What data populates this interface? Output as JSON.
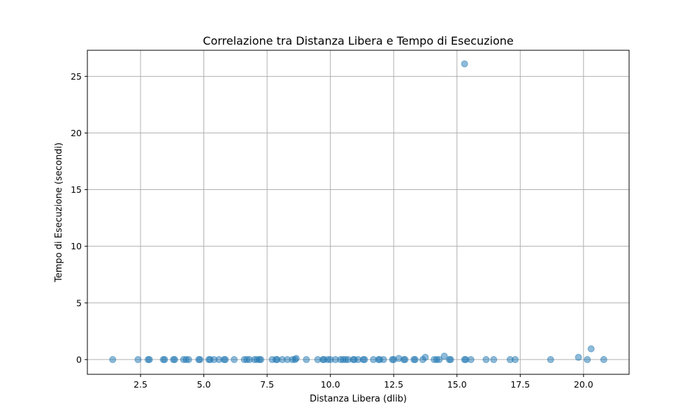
{
  "chart_data": {
    "type": "scatter",
    "title": "Correlazione tra Distanza Libera e Tempo di Esecuzione",
    "xlabel": "Distanza Libera (dlib)",
    "ylabel": "Tempo di Esecuzione (secondi)",
    "xlim": [
      0.4,
      21.8
    ],
    "ylim": [
      -1.3,
      27.3
    ],
    "xticks": [
      2.5,
      5.0,
      7.5,
      10.0,
      12.5,
      15.0,
      17.5,
      20.0
    ],
    "xtick_labels": [
      "2.5",
      "5.0",
      "7.5",
      "10.0",
      "12.5",
      "15.0",
      "17.5",
      "20.0"
    ],
    "yticks": [
      0,
      5,
      10,
      15,
      20,
      25
    ],
    "ytick_labels": [
      "0",
      "5",
      "10",
      "15",
      "20",
      "25"
    ],
    "grid": true,
    "marker_color": "#1f77b4",
    "marker_alpha": 0.5,
    "points": [
      [
        1.4,
        0.0
      ],
      [
        2.4,
        0.0
      ],
      [
        2.8,
        0.0
      ],
      [
        2.85,
        0.0
      ],
      [
        3.4,
        0.0
      ],
      [
        3.45,
        0.0
      ],
      [
        3.8,
        0.0
      ],
      [
        3.85,
        0.0
      ],
      [
        4.2,
        0.0
      ],
      [
        4.3,
        0.0
      ],
      [
        4.4,
        0.0
      ],
      [
        4.8,
        0.0
      ],
      [
        4.85,
        0.0
      ],
      [
        5.2,
        0.0
      ],
      [
        5.25,
        0.0
      ],
      [
        5.4,
        0.0
      ],
      [
        5.6,
        0.0
      ],
      [
        5.8,
        0.0
      ],
      [
        5.85,
        0.0
      ],
      [
        6.2,
        0.0
      ],
      [
        6.6,
        0.0
      ],
      [
        6.7,
        0.0
      ],
      [
        6.8,
        0.0
      ],
      [
        7.0,
        0.0
      ],
      [
        7.1,
        0.0
      ],
      [
        7.2,
        0.0
      ],
      [
        7.25,
        0.0
      ],
      [
        7.7,
        0.0
      ],
      [
        7.85,
        0.0
      ],
      [
        7.9,
        0.0
      ],
      [
        8.1,
        0.0
      ],
      [
        8.3,
        0.0
      ],
      [
        8.5,
        0.0
      ],
      [
        8.6,
        0.0
      ],
      [
        8.65,
        0.1
      ],
      [
        9.05,
        0.0
      ],
      [
        9.5,
        0.0
      ],
      [
        9.7,
        0.0
      ],
      [
        9.75,
        0.0
      ],
      [
        9.9,
        0.0
      ],
      [
        10.0,
        0.0
      ],
      [
        10.2,
        0.0
      ],
      [
        10.4,
        0.0
      ],
      [
        10.5,
        0.0
      ],
      [
        10.6,
        0.0
      ],
      [
        10.7,
        0.0
      ],
      [
        10.9,
        0.0
      ],
      [
        10.95,
        0.0
      ],
      [
        11.1,
        0.0
      ],
      [
        11.3,
        0.0
      ],
      [
        11.35,
        0.0
      ],
      [
        11.7,
        0.0
      ],
      [
        11.9,
        0.0
      ],
      [
        11.95,
        0.0
      ],
      [
        12.1,
        0.0
      ],
      [
        12.45,
        0.0
      ],
      [
        12.5,
        0.0
      ],
      [
        12.7,
        0.1
      ],
      [
        12.9,
        0.0
      ],
      [
        12.95,
        0.0
      ],
      [
        13.3,
        0.0
      ],
      [
        13.35,
        0.0
      ],
      [
        13.65,
        0.0
      ],
      [
        13.75,
        0.2
      ],
      [
        14.1,
        0.0
      ],
      [
        14.2,
        0.0
      ],
      [
        14.3,
        0.0
      ],
      [
        14.5,
        0.3
      ],
      [
        14.7,
        0.0
      ],
      [
        14.75,
        0.0
      ],
      [
        15.3,
        0.0
      ],
      [
        15.35,
        0.0
      ],
      [
        15.3,
        26.1
      ],
      [
        15.55,
        0.0
      ],
      [
        16.15,
        0.0
      ],
      [
        16.45,
        0.0
      ],
      [
        17.1,
        0.0
      ],
      [
        17.3,
        0.0
      ],
      [
        18.7,
        0.0
      ],
      [
        19.8,
        0.2
      ],
      [
        20.15,
        0.0
      ],
      [
        20.3,
        0.95
      ],
      [
        20.8,
        0.0
      ]
    ]
  }
}
